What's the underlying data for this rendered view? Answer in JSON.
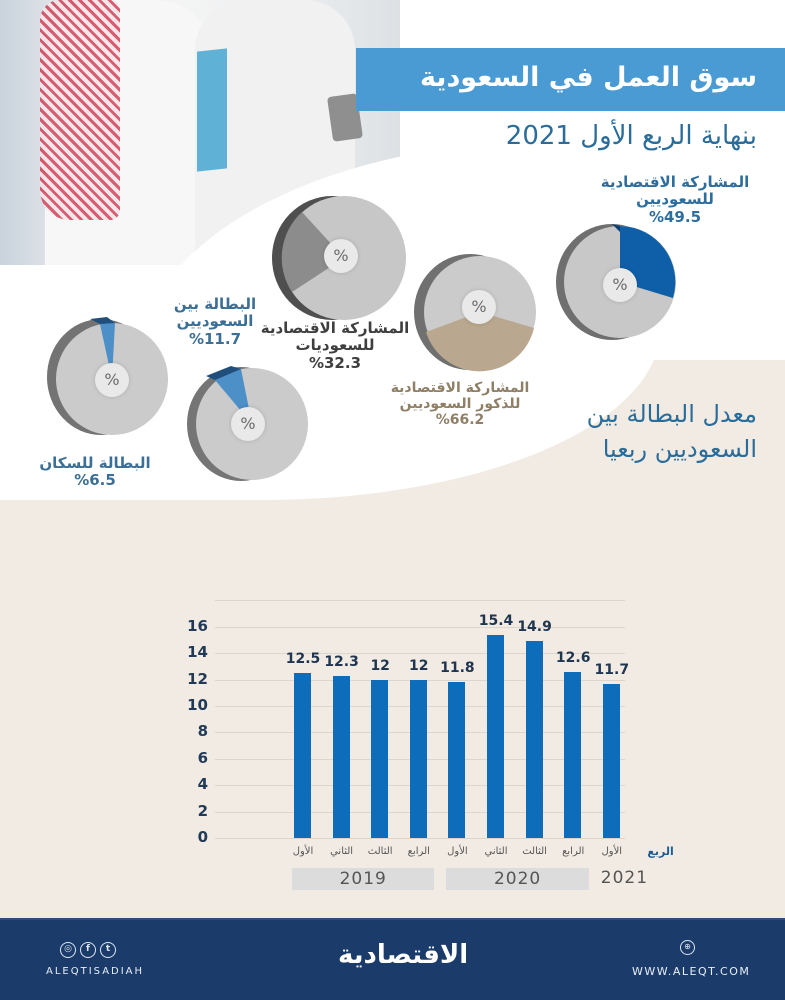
{
  "header": {
    "title": "سوق العمل في السعودية",
    "subtitle": "بنهاية الربع الأول 2021"
  },
  "pies": [
    {
      "id": "saudi-participation",
      "line1": "المشاركة الاقتصادية",
      "line2": "للسعوديين",
      "value": "%49.5",
      "center": "%",
      "color": "#0e5fa8"
    },
    {
      "id": "female-participation",
      "line1": "المشاركة الاقتصادية",
      "line2": "للسعوديات",
      "value": "%32.3",
      "center": "%",
      "color": "#8c8c8c"
    },
    {
      "id": "male-participation",
      "line1": "المشاركة الاقتصادية",
      "line2": "للذكور السعوديين",
      "value": "%66.2",
      "center": "%",
      "color": "#b9a88f"
    },
    {
      "id": "saudi-unemployment",
      "line1": "البطالة بين",
      "line2": "السعوديين",
      "value": "%11.7",
      "center": "%",
      "color": "#4d8fc7"
    },
    {
      "id": "population-unemployment",
      "line1": "البطالة للسكان",
      "line2": "",
      "value": "%6.5",
      "center": "%",
      "color": "#4d8fc7"
    }
  ],
  "chart_section": {
    "title_line1": "معدل البطالة بين",
    "title_line2": "السعوديين ربعيا",
    "x_header": "الربع"
  },
  "chart_data": {
    "type": "bar",
    "title": "معدل البطالة بين السعوديين ربعيا",
    "xlabel": "الربع",
    "ylabel": "",
    "ylim": [
      0,
      18
    ],
    "yticks": [
      0,
      2,
      4,
      6,
      8,
      10,
      12,
      14,
      16
    ],
    "grid": true,
    "categories": [
      "الأول 2019",
      "الثاني 2019",
      "الثالث 2019",
      "الرابع 2019",
      "الأول 2020",
      "الثاني 2020",
      "الثالث 2020",
      "الرابع 2020",
      "الأول 2021"
    ],
    "quarter_labels": [
      "الأول",
      "الثاني",
      "الثالث",
      "الرابع",
      "الأول",
      "الثاني",
      "الثالث",
      "الرابع",
      "الأول"
    ],
    "years": [
      {
        "label": "2019",
        "span": 4
      },
      {
        "label": "2020",
        "span": 4
      },
      {
        "label": "2021",
        "span": 1
      }
    ],
    "values": [
      12.5,
      12.3,
      12,
      12,
      11.8,
      15.4,
      14.9,
      12.6,
      11.7
    ],
    "value_labels": [
      "12.5",
      "12.3",
      "12",
      "12",
      "11.8",
      "15.4",
      "14.9",
      "12.6",
      "11.7"
    ],
    "bar_color": "#0e6dba"
  },
  "footer": {
    "social_icons": [
      "instagram-icon",
      "facebook-icon",
      "twitter-icon"
    ],
    "handle": "ALEQTISADIAH",
    "brand": "الاقتصادية",
    "website": "WWW.ALEQT.COM"
  }
}
